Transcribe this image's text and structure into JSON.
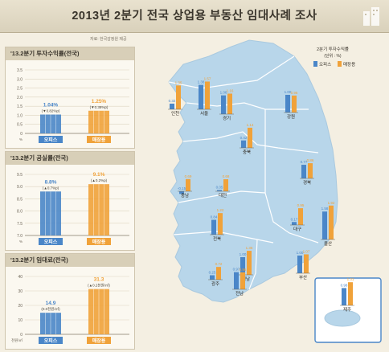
{
  "page": {
    "title": "2013년 2분기 전국 상업용 부동산 임대사례 조사",
    "source_note": "자료: 한국감정원 제공"
  },
  "legend": {
    "title": "2분기 투자수익률",
    "unit": "(단위 : %)",
    "office": "오피스",
    "retail": "매장용"
  },
  "colors": {
    "office": "#4a86c8",
    "retail": "#f0a23a",
    "map_fill": "#b8d6ea",
    "map_stroke": "#ffffff"
  },
  "chart_data": [
    {
      "type": "bar",
      "title": "'13.2분기 투자수익률(전국)",
      "unit": "%",
      "categories": [
        "오피스",
        "매장용"
      ],
      "values": [
        1.04,
        1.25
      ],
      "value_labels": [
        "1.04%",
        "1.25%"
      ],
      "change_labels": [
        "(▼0.82%p)",
        "(▼0.38%p)"
      ],
      "ylim": [
        0,
        3.5
      ],
      "yticks": [
        "0",
        "0.5",
        "1.0",
        "1.5",
        "2.0",
        "2.5",
        "3.0",
        "3.5"
      ]
    },
    {
      "type": "bar",
      "title": "'13.2분기 공실률(전국)",
      "unit": "%",
      "categories": [
        "오피스",
        "매장용"
      ],
      "values": [
        8.8,
        9.1
      ],
      "value_labels": [
        "8.8%",
        "9.1%"
      ],
      "change_labels": [
        "(▲0.7%p)",
        "(▲0.2%p)"
      ],
      "ylim": [
        7.0,
        9.5
      ],
      "yticks": [
        "7.0",
        "7.5",
        "8.0",
        "8.5",
        "9.0",
        "9.5"
      ]
    },
    {
      "type": "bar",
      "title": "'13.2분기 임대료(전국)",
      "unit": "천원/㎡",
      "categories": [
        "오피스",
        "매장용"
      ],
      "values": [
        14.9,
        31.3
      ],
      "value_labels": [
        "14.9",
        "31.3"
      ],
      "change_labels": [
        "(0.0천원/㎡)",
        "(▲0.2천원/㎡)"
      ],
      "ylim": [
        0,
        40
      ],
      "yticks": [
        "0",
        "10",
        "20",
        "30",
        "40"
      ]
    },
    {
      "type": "bar",
      "title": "2분기 투자수익률",
      "unit": "%",
      "series": [
        {
          "name": "오피스",
          "values": [
            0.32,
            1.38,
            1.06,
            1.0,
            0.42,
            -0.15,
            0.05,
            0.77,
            0.84,
            0.17,
            1.58,
            1.0,
            0.25,
            0.97,
            1.0,
            0.98
          ]
        },
        {
          "name": "매장용",
          "values": [
            1.35,
            1.57,
            1.16,
            0.96,
            1.14,
            0.69,
            0.68,
            0.86,
            1.22,
            0.95,
            1.92,
            1.36,
            0.72,
            0.96,
            1.07,
            1.31
          ]
        }
      ],
      "categories": [
        "인천",
        "서울",
        "경기",
        "강원",
        "충북",
        "충남",
        "대전",
        "경북",
        "전북",
        "대구",
        "울산",
        "경남",
        "광주",
        "전남",
        "부산",
        "제주"
      ],
      "office_labels": [
        "0.32",
        "1.38",
        "1.06",
        "1.00",
        "0.42",
        "-0.15",
        "0.05",
        "0.77",
        "0.84",
        "0.17",
        "1.58",
        "1.00",
        "0.25",
        "0.97",
        "1.00",
        "0.98"
      ],
      "retail_labels": [
        "1.35",
        "1.57",
        "1.16",
        "0.96",
        "1.14",
        "0.69",
        "0.68",
        "0.86",
        "1.22",
        "0.95",
        "1.92",
        "1.36",
        "0.72",
        "0.96",
        "1.07",
        "1.31"
      ]
    }
  ]
}
